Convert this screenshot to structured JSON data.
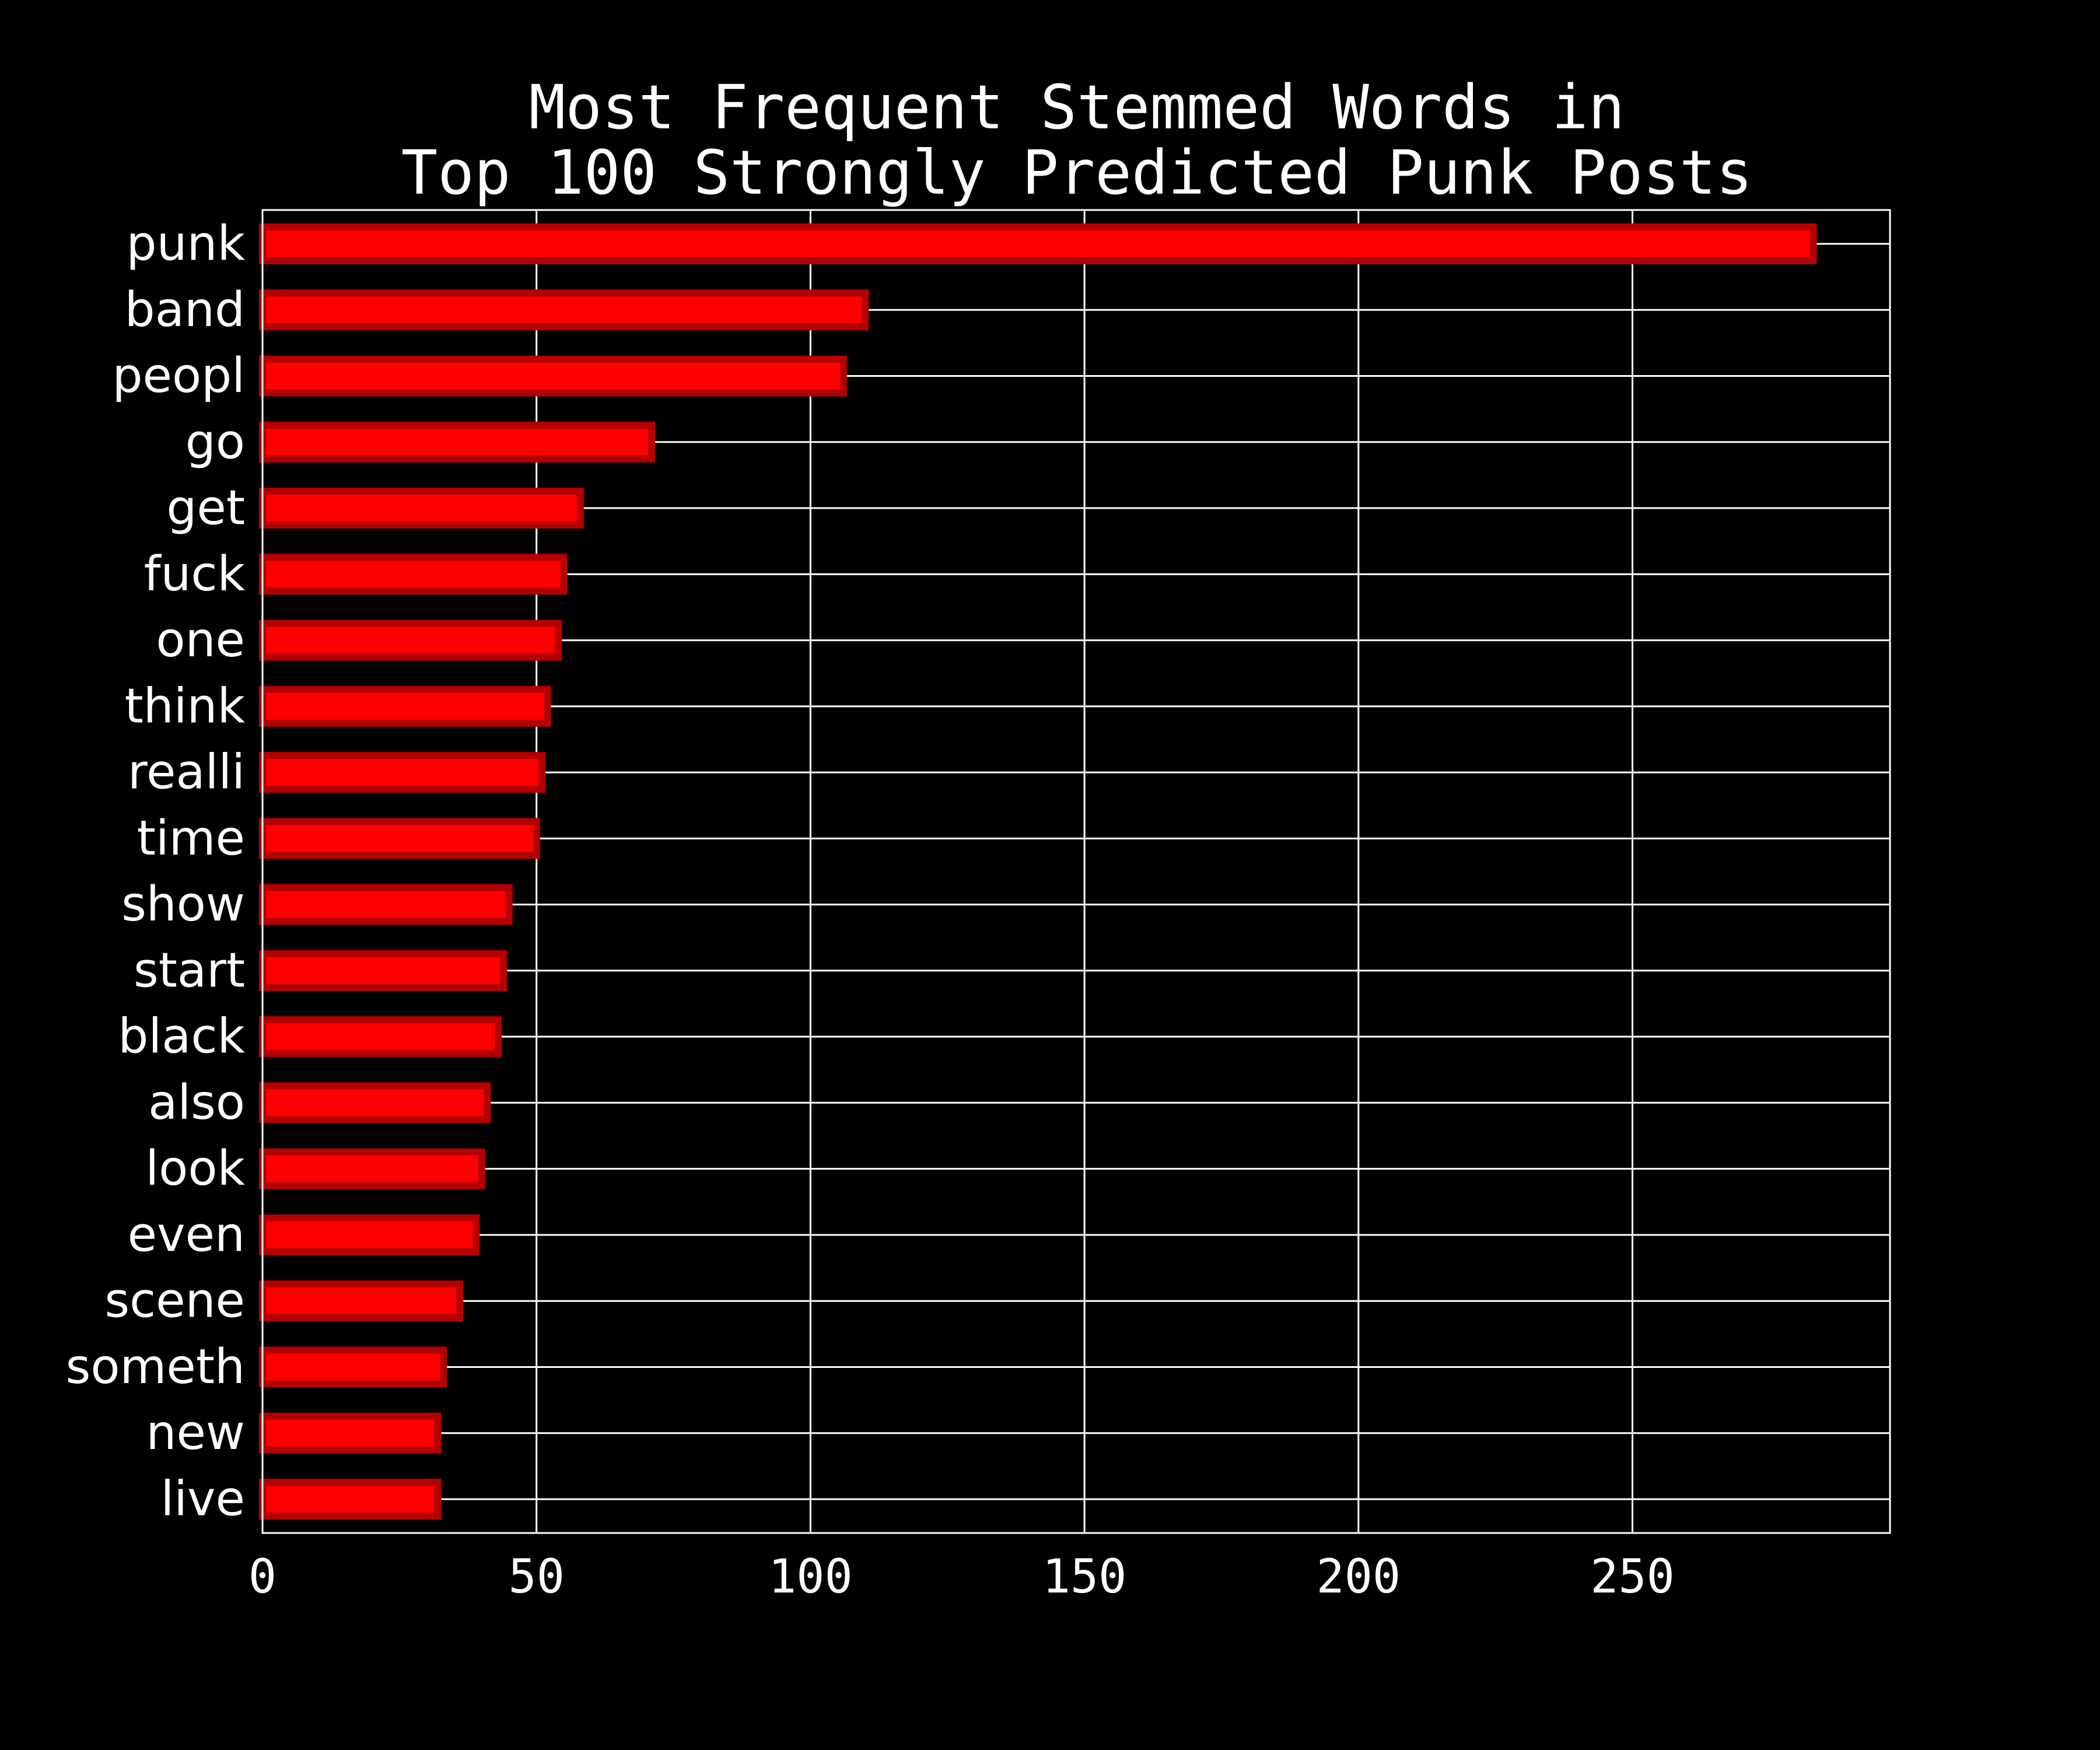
{
  "chart_data": {
    "type": "bar",
    "orientation": "horizontal",
    "title": "Most Frequent Stemmed Words in\nTop 100 Strongly Predicted Punk Posts",
    "title_lines": [
      "Most Frequent Stemmed Words in",
      "Top 100 Strongly Predicted Punk Posts"
    ],
    "xlabel": "",
    "ylabel": "",
    "categories": [
      "punk",
      "band",
      "peopl",
      "go",
      "get",
      "fuck",
      "one",
      "think",
      "realli",
      "time",
      "show",
      "start",
      "black",
      "also",
      "look",
      "even",
      "scene",
      "someth",
      "new",
      "live"
    ],
    "values": [
      283,
      110,
      106,
      71,
      58,
      55,
      54,
      52,
      51,
      50,
      45,
      44,
      43,
      41,
      40,
      39,
      36,
      33,
      32,
      32
    ],
    "xlim": [
      0,
      297
    ],
    "xticks": [
      0,
      50,
      100,
      150,
      200,
      250
    ],
    "grid": true,
    "colors": {
      "background": "#000000",
      "bar_fill": "#ff0000",
      "bar_edge": "#b30000",
      "grid": "#ffffff",
      "text": "#ffffff"
    }
  }
}
